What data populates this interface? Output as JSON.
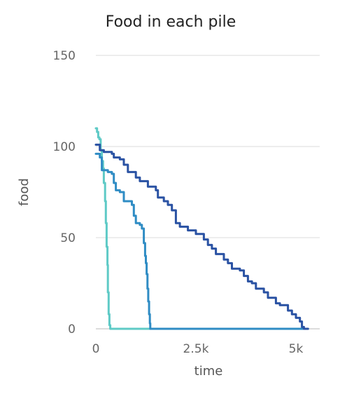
{
  "chart_data": {
    "type": "line",
    "title": "Food in each pile",
    "xlabel": "time",
    "ylabel": "food",
    "xlim": [
      0,
      5600
    ],
    "ylim": [
      0,
      150
    ],
    "x_ticks": [
      {
        "value": 0,
        "label": "0"
      },
      {
        "value": 2500,
        "label": "2.5k"
      },
      {
        "value": 5000,
        "label": "5k"
      }
    ],
    "y_ticks": [
      {
        "value": 0,
        "label": "0"
      },
      {
        "value": 50,
        "label": "50"
      },
      {
        "value": 100,
        "label": "100"
      },
      {
        "value": 150,
        "label": "150"
      }
    ],
    "grid": true,
    "legend": "none",
    "series": [
      {
        "color": "#5ecac6",
        "points": [
          [
            0,
            110
          ],
          [
            30,
            108
          ],
          [
            60,
            105
          ],
          [
            90,
            104
          ],
          [
            120,
            98
          ],
          [
            150,
            92
          ],
          [
            180,
            88
          ],
          [
            200,
            80
          ],
          [
            230,
            70
          ],
          [
            250,
            58
          ],
          [
            270,
            45
          ],
          [
            290,
            35
          ],
          [
            300,
            20
          ],
          [
            320,
            8
          ],
          [
            340,
            2
          ],
          [
            360,
            0
          ],
          [
            5300,
            0
          ]
        ]
      },
      {
        "color": "#2f8cc4",
        "points": [
          [
            0,
            96
          ],
          [
            100,
            94
          ],
          [
            150,
            87
          ],
          [
            300,
            86
          ],
          [
            400,
            85
          ],
          [
            450,
            80
          ],
          [
            500,
            76
          ],
          [
            600,
            75
          ],
          [
            700,
            70
          ],
          [
            800,
            70
          ],
          [
            900,
            68
          ],
          [
            950,
            62
          ],
          [
            1000,
            58
          ],
          [
            1100,
            57
          ],
          [
            1150,
            55
          ],
          [
            1200,
            47
          ],
          [
            1230,
            40
          ],
          [
            1250,
            36
          ],
          [
            1270,
            30
          ],
          [
            1290,
            22
          ],
          [
            1310,
            15
          ],
          [
            1330,
            8
          ],
          [
            1350,
            3
          ],
          [
            1360,
            0
          ],
          [
            5300,
            0
          ]
        ]
      },
      {
        "color": "#2a52a3",
        "points": [
          [
            0,
            101
          ],
          [
            100,
            98
          ],
          [
            200,
            97
          ],
          [
            400,
            96
          ],
          [
            450,
            94
          ],
          [
            600,
            93
          ],
          [
            700,
            90
          ],
          [
            800,
            86
          ],
          [
            1000,
            83
          ],
          [
            1100,
            81
          ],
          [
            1300,
            78
          ],
          [
            1500,
            76
          ],
          [
            1550,
            72
          ],
          [
            1700,
            70
          ],
          [
            1800,
            68
          ],
          [
            1900,
            65
          ],
          [
            2000,
            58
          ],
          [
            2100,
            56
          ],
          [
            2300,
            54
          ],
          [
            2500,
            52
          ],
          [
            2700,
            49
          ],
          [
            2800,
            46
          ],
          [
            2900,
            44
          ],
          [
            3000,
            41
          ],
          [
            3200,
            38
          ],
          [
            3300,
            36
          ],
          [
            3400,
            33
          ],
          [
            3600,
            32
          ],
          [
            3700,
            29
          ],
          [
            3800,
            26
          ],
          [
            3900,
            25
          ],
          [
            4000,
            22
          ],
          [
            4200,
            20
          ],
          [
            4300,
            17
          ],
          [
            4500,
            14
          ],
          [
            4600,
            13
          ],
          [
            4800,
            10
          ],
          [
            4900,
            8
          ],
          [
            5000,
            6
          ],
          [
            5100,
            4
          ],
          [
            5150,
            1
          ],
          [
            5200,
            0
          ],
          [
            5300,
            0
          ]
        ]
      }
    ]
  }
}
